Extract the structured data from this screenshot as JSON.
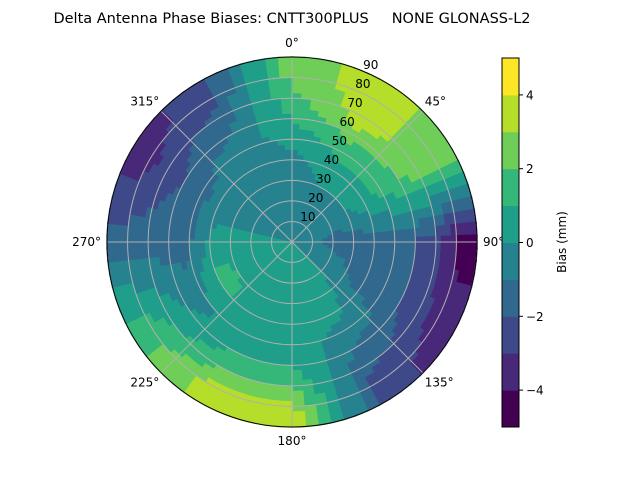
{
  "chart_data": {
    "type": "heatmap",
    "subtype": "polar-filled-contour",
    "title": "Delta Antenna Phase Biases: CNTT300PLUS     NONE GLONASS-L2",
    "theta_direction": "clockwise",
    "theta_zero": "north",
    "theta_tick_labels": [
      "0°",
      "45°",
      "90°",
      "135°",
      "180°",
      "225°",
      "270°",
      "315°"
    ],
    "r_tick_labels": [
      "10",
      "20",
      "30",
      "40",
      "50",
      "60",
      "70",
      "80",
      "90"
    ],
    "r_ticks": [
      10,
      20,
      30,
      40,
      50,
      60,
      70,
      80,
      90
    ],
    "rlim": [
      0,
      90
    ],
    "grid": true,
    "colormap": "viridis",
    "levels": [
      -5,
      -4,
      -3,
      -2,
      -1,
      0,
      1,
      2,
      3,
      4,
      5
    ],
    "level_colors": [
      "#440154",
      "#482878",
      "#3e4989",
      "#31688e",
      "#26828e",
      "#1f9e89",
      "#35b779",
      "#6ece58",
      "#b5de2b",
      "#fde725"
    ],
    "colorbar": {
      "label": "Bias (mm)",
      "tick_values": [
        -4,
        -2,
        0,
        2,
        4
      ],
      "tick_labels": [
        "−4",
        "−2",
        "0",
        "2",
        "4"
      ],
      "placement": "right"
    },
    "azimuths_deg": [
      0,
      30,
      60,
      90,
      120,
      150,
      180,
      210,
      240,
      270,
      300,
      330
    ],
    "r_values": [
      7.5,
      22.5,
      37.5,
      52.5,
      67.5,
      82.5
    ],
    "bias_mm": [
      [
        -0.5,
        -0.5,
        -0.5,
        0.5,
        1.5,
        2.5
      ],
      [
        -0.5,
        -0.5,
        0.5,
        1.5,
        3.5,
        3.5
      ],
      [
        -0.5,
        -0.5,
        0.5,
        1.5,
        2.5,
        2.5
      ],
      [
        -0.5,
        -1.5,
        -1.5,
        -1.5,
        -2.5,
        -4.5
      ],
      [
        -0.5,
        -0.5,
        -1.5,
        -1.5,
        -2.5,
        -3.5
      ],
      [
        0.5,
        0.5,
        0.5,
        -0.5,
        -1.5,
        -2.5
      ],
      [
        0.5,
        0.5,
        0.5,
        0.5,
        1.5,
        3.5
      ],
      [
        0.5,
        0.5,
        0.5,
        0.5,
        1.5,
        3.5
      ],
      [
        0.5,
        0.5,
        1.5,
        -0.5,
        0.5,
        1.5
      ],
      [
        0.5,
        0.5,
        0.5,
        -1.5,
        -1.5,
        -1.5
      ],
      [
        -0.5,
        -0.5,
        -0.5,
        -1.5,
        -2.5,
        -3.5
      ],
      [
        -0.5,
        -0.5,
        -0.5,
        -0.5,
        -1.5,
        -2.5
      ]
    ]
  }
}
